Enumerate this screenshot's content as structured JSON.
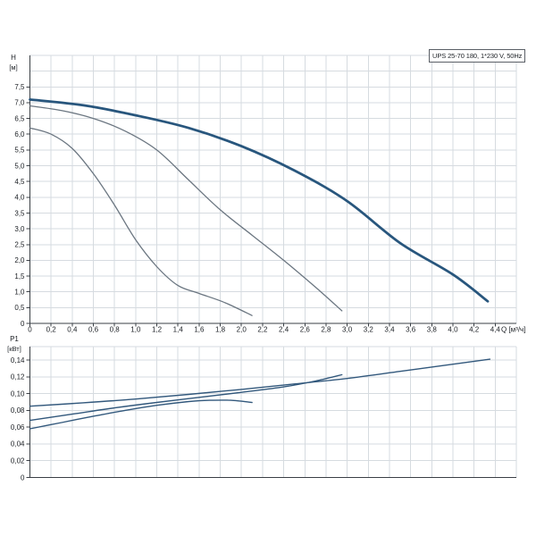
{
  "badge": {
    "label": "UPS 25-70 180, 1*230 V, 50Hz"
  },
  "colors": {
    "background": "#ffffff",
    "grid": "#d6dbe0",
    "axis": "#3a3f45",
    "tick_text": "#1b1f24",
    "curve_thick_blue": "#28567d",
    "curve_thin_gray": "#6b7681",
    "curve_power_blue": "#32587c"
  },
  "chart_data": [
    {
      "type": "line",
      "title": "UPS 25-70 180, 1*230 V, 50Hz",
      "ylabel_lines": [
        "H",
        "[м]"
      ],
      "xlabel": "Q [м³/ч]",
      "xlim": [
        0,
        4.6
      ],
      "ylim": [
        0,
        8.5
      ],
      "grid": {
        "x_step": 0.2,
        "y_step": 0.5,
        "on": true
      },
      "x_tick_step": 0.2,
      "y_tick_step": 0.5,
      "x_tick_labels": [
        "0",
        "0,2",
        "0,4",
        "0,6",
        "0,8",
        "1,0",
        "1,2",
        "1,4",
        "1,6",
        "1,8",
        "2,0",
        "2,2",
        "2,4",
        "2,6",
        "2,8",
        "3,0",
        "3,2",
        "3,4",
        "3,6",
        "3,8",
        "4,0",
        "4,2",
        "4,4"
      ],
      "y_tick_labels": [
        "0",
        "0,5",
        "1,0",
        "1,5",
        "2,0",
        "2,5",
        "3,0",
        "3,5",
        "4,0",
        "4,5",
        "5,0",
        "5,5",
        "6,0",
        "6,5",
        "7,0",
        "7,5"
      ],
      "legend": "none",
      "series": [
        {
          "name": "speed-1-head",
          "color": "#6b7681",
          "width": 1.3,
          "points": [
            [
              0,
              6.2
            ],
            [
              0.2,
              6.0
            ],
            [
              0.4,
              5.55
            ],
            [
              0.6,
              4.75
            ],
            [
              0.8,
              3.75
            ],
            [
              1.0,
              2.65
            ],
            [
              1.2,
              1.8
            ],
            [
              1.4,
              1.2
            ],
            [
              1.6,
              0.95
            ],
            [
              1.85,
              0.65
            ],
            [
              2.1,
              0.25
            ]
          ]
        },
        {
          "name": "speed-2-head",
          "color": "#6b7681",
          "width": 1.3,
          "points": [
            [
              0,
              6.9
            ],
            [
              0.3,
              6.75
            ],
            [
              0.6,
              6.5
            ],
            [
              0.9,
              6.1
            ],
            [
              1.2,
              5.5
            ],
            [
              1.5,
              4.55
            ],
            [
              1.8,
              3.6
            ],
            [
              2.1,
              2.8
            ],
            [
              2.4,
              2.0
            ],
            [
              2.7,
              1.15
            ],
            [
              2.95,
              0.4
            ]
          ]
        },
        {
          "name": "speed-3-head",
          "color": "#28567d",
          "width": 2.8,
          "points": [
            [
              0,
              7.1
            ],
            [
              0.5,
              6.92
            ],
            [
              1.0,
              6.6
            ],
            [
              1.5,
              6.2
            ],
            [
              2.0,
              5.62
            ],
            [
              2.5,
              4.85
            ],
            [
              3.0,
              3.88
            ],
            [
              3.5,
              2.55
            ],
            [
              4.0,
              1.55
            ],
            [
              4.33,
              0.7
            ]
          ]
        }
      ]
    },
    {
      "type": "line",
      "title": "",
      "ylabel_lines": [
        "P1",
        "[кВт]"
      ],
      "xlabel": "",
      "xlim": [
        0,
        4.6
      ],
      "ylim": [
        0,
        0.156
      ],
      "grid": {
        "x_step": 0.2,
        "y_step": 0.02,
        "on": true
      },
      "x_tick_step": 0.2,
      "y_tick_step": 0.02,
      "x_tick_labels": [],
      "y_tick_labels": [
        "0",
        "0,02",
        "0,04",
        "0,06",
        "0,08",
        "0,10",
        "0,12",
        "0,14"
      ],
      "legend": "none",
      "series": [
        {
          "name": "speed-1-power",
          "color": "#32587c",
          "width": 1.4,
          "points": [
            [
              0,
              0.058
            ],
            [
              0.3,
              0.0655
            ],
            [
              0.6,
              0.073
            ],
            [
              0.9,
              0.08
            ],
            [
              1.2,
              0.086
            ],
            [
              1.5,
              0.0905
            ],
            [
              1.7,
              0.092
            ],
            [
              1.9,
              0.092
            ],
            [
              2.1,
              0.0895
            ]
          ]
        },
        {
          "name": "speed-2-power",
          "color": "#32587c",
          "width": 1.4,
          "points": [
            [
              0,
              0.068
            ],
            [
              0.4,
              0.0755
            ],
            [
              0.8,
              0.083
            ],
            [
              1.2,
              0.0895
            ],
            [
              1.6,
              0.0955
            ],
            [
              2.0,
              0.1015
            ],
            [
              2.4,
              0.108
            ],
            [
              2.7,
              0.115
            ],
            [
              2.95,
              0.1225
            ]
          ]
        },
        {
          "name": "speed-3-power",
          "color": "#32587c",
          "width": 1.4,
          "points": [
            [
              0,
              0.085
            ],
            [
              0.5,
              0.089
            ],
            [
              1.0,
              0.0935
            ],
            [
              1.5,
              0.099
            ],
            [
              2.0,
              0.105
            ],
            [
              2.5,
              0.1115
            ],
            [
              3.0,
              0.118
            ],
            [
              3.5,
              0.1265
            ],
            [
              4.0,
              0.135
            ],
            [
              4.35,
              0.141
            ]
          ]
        }
      ]
    }
  ]
}
